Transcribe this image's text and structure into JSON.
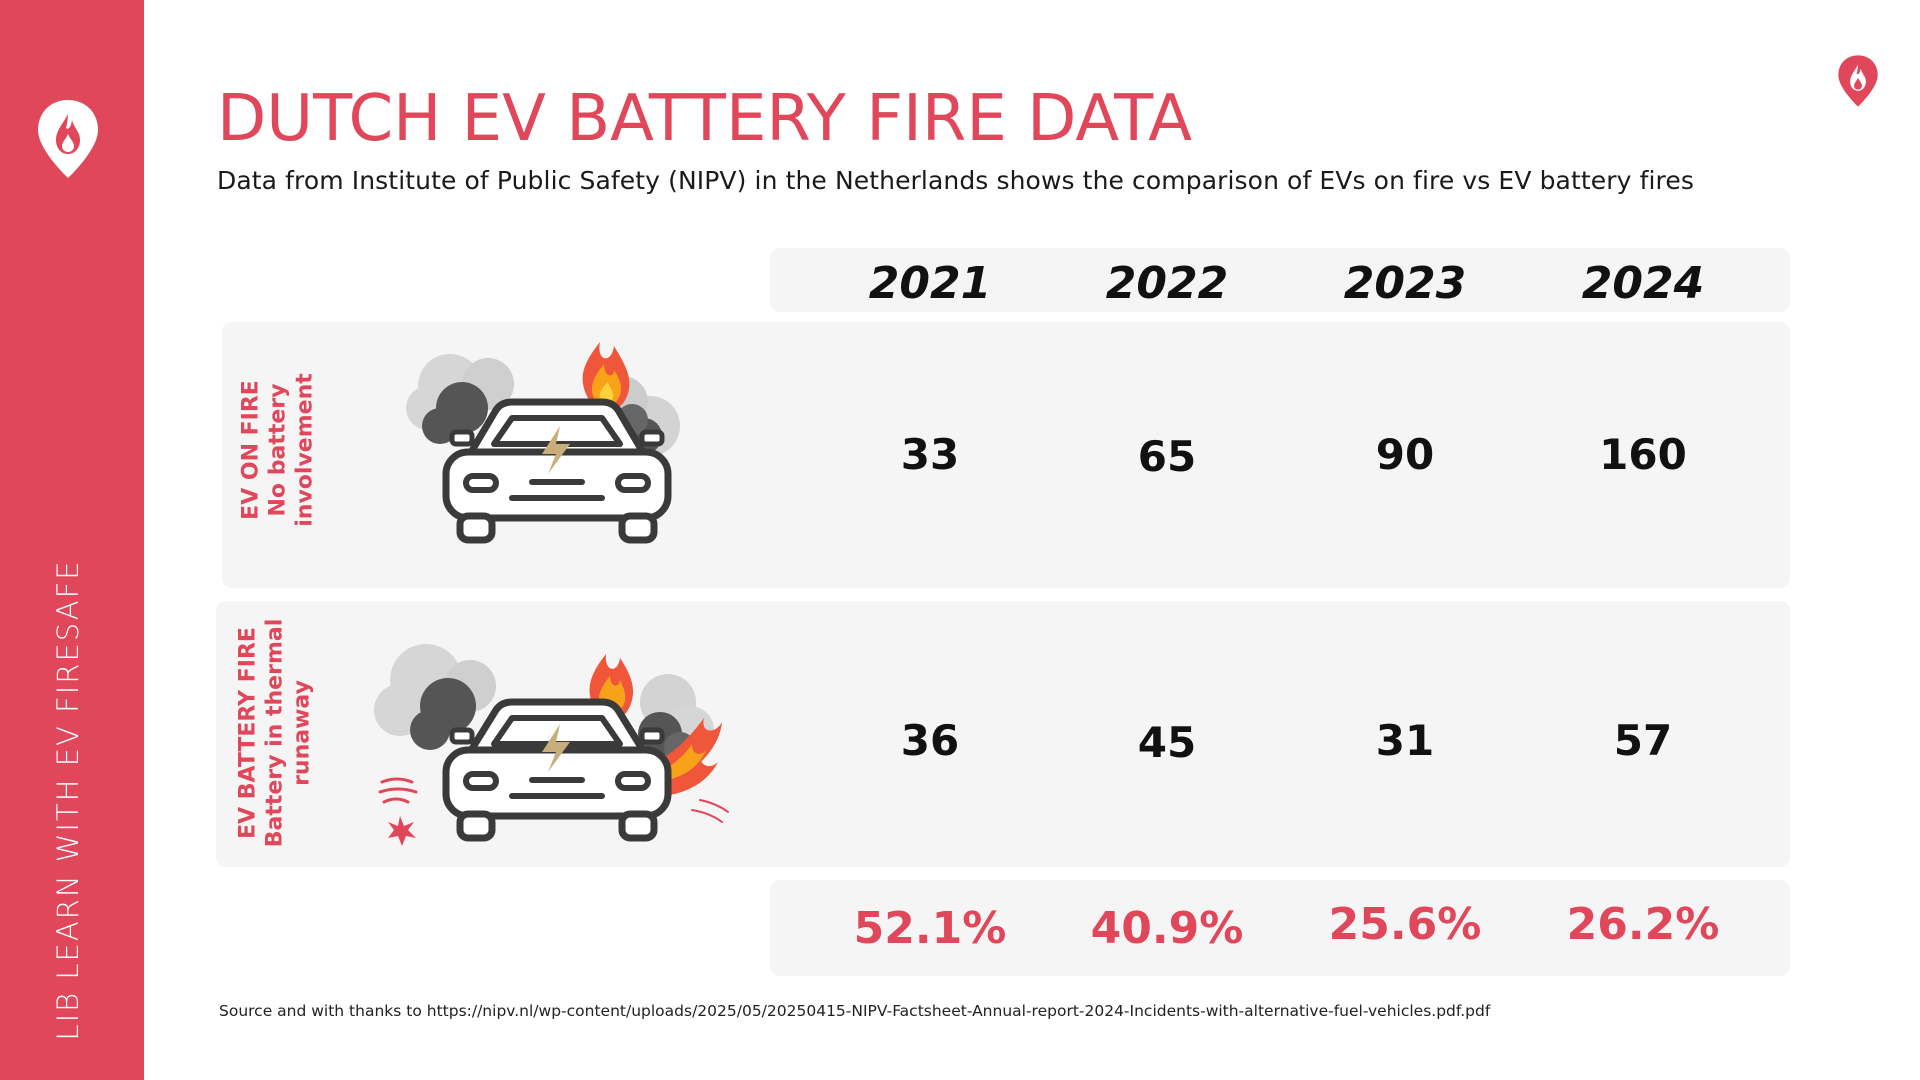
{
  "sidebar": {
    "vertical_text": "LIB LEARN WITH EV FIRESAFE",
    "logo_icon": "flame-pin-icon"
  },
  "header": {
    "title": "DUTCH EV BATTERY FIRE DATA",
    "subtitle": "Data from Institute of Public Safety (NIPV) in the Netherlands shows the comparison of EVs on fire vs EV battery fires"
  },
  "corner_logo_icon": "flame-pin-icon",
  "table": {
    "years": [
      "2021",
      "2022",
      "2023",
      "2024"
    ],
    "rows": [
      {
        "label_line1": "EV ON FIRE",
        "label_line2": "No battery",
        "label_line3": "involvement",
        "icon": "car-on-fire-icon",
        "values": [
          "33",
          "65",
          "90",
          "160"
        ]
      },
      {
        "label_line1": "EV BATTERY FIRE",
        "label_line2": "Battery in thermal",
        "label_line3": "runaway",
        "icon": "car-battery-fire-icon",
        "values": [
          "36",
          "45",
          "31",
          "57"
        ]
      }
    ],
    "percentages": [
      "52.1%",
      "40.9%",
      "25.6%",
      "26.2%"
    ]
  },
  "source": "Source and with thanks to https://nipv.nl/wp-content/uploads/2025/05/20250415-NIPV-Factsheet-Annual-report-2024-Incidents-with-alternative-fuel-vehicles.pdf.pdf",
  "colors": {
    "accent": "#e0475a",
    "panel": "#f5f5f5",
    "text": "#111111"
  }
}
